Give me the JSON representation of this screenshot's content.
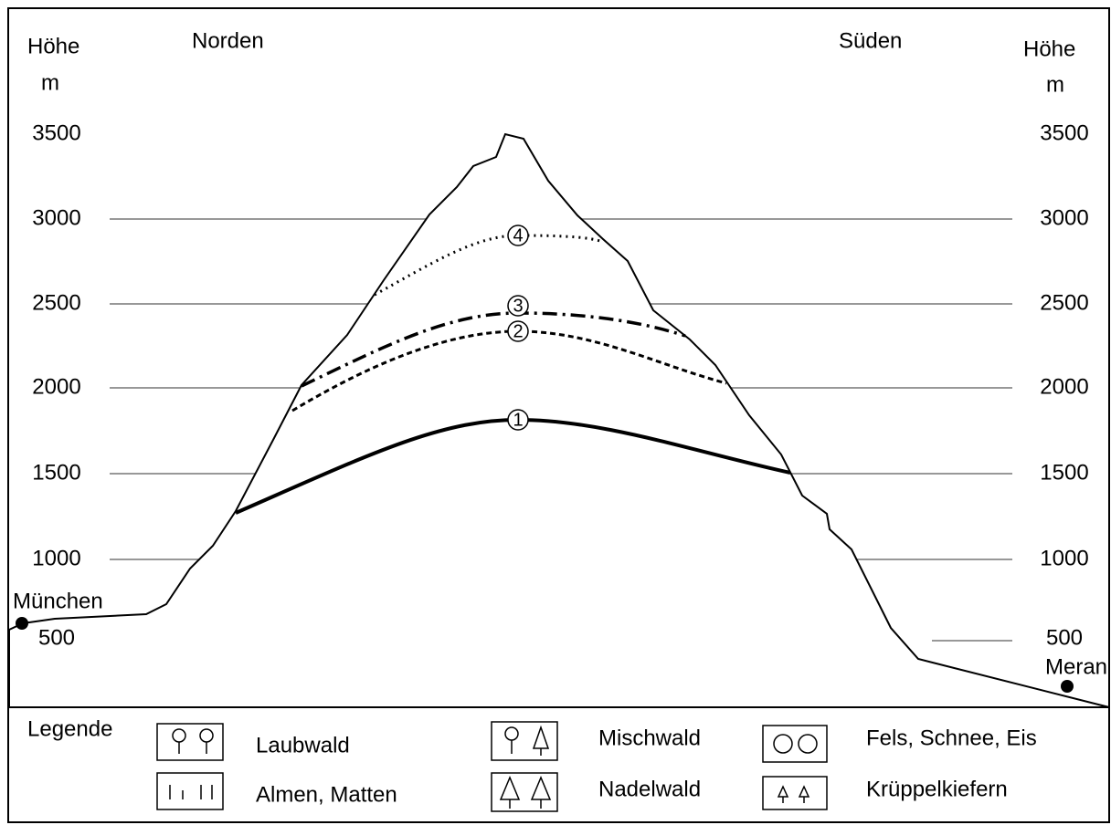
{
  "left_axis": {
    "title": "Höhe",
    "unit": "m",
    "labels": [
      "3500",
      "3000",
      "2500",
      "2000",
      "1500",
      "1000",
      "500"
    ]
  },
  "right_axis": {
    "title": "Höhe",
    "unit": "m",
    "labels": [
      "3500",
      "3000",
      "2500",
      "2000",
      "1500",
      "1000",
      "500"
    ]
  },
  "directions": {
    "north": "Norden",
    "south": "Süden"
  },
  "places": {
    "left": "München",
    "right": "Meran"
  },
  "zones": [
    "1",
    "2",
    "3",
    "4"
  ],
  "legend": {
    "title": "Legende",
    "items": [
      "Laubwald",
      "Almen, Matten",
      "Mischwald",
      "Nadelwald",
      "Fels, Schnee, Eis",
      "Krüppelkiefern"
    ]
  }
}
